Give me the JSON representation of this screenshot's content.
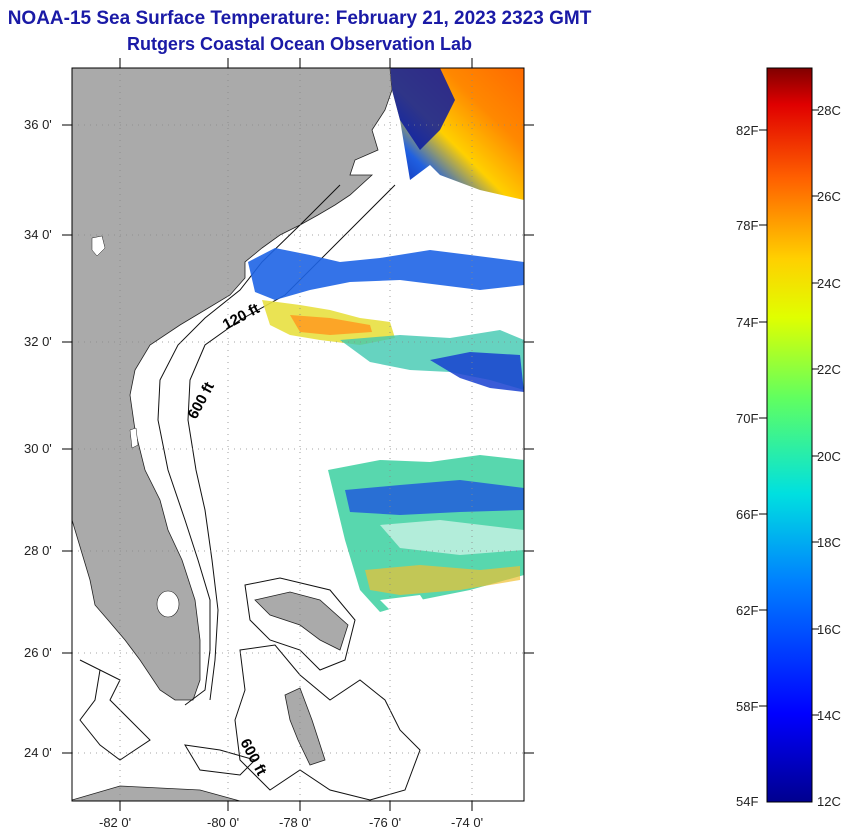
{
  "header": {
    "title": "NOAA-15 Sea Surface Temperature:  February 21, 2023 2323 GMT",
    "subtitle": "Rutgers Coastal Ocean Observation Lab"
  },
  "map": {
    "lat_labels": [
      "36 0'",
      "34 0'",
      "32 0'",
      "30 0'",
      "28 0'",
      "26 0'",
      "24 0'"
    ],
    "lon_labels": [
      "-82 0'",
      "-80 0'",
      "-78 0'",
      "-76 0'",
      "-74 0'"
    ],
    "contour_labels": [
      "120 ft",
      "600 ft",
      "600 ft"
    ],
    "colors": {
      "land": "#aaaaaa",
      "ocean": "#ffffff",
      "title": "#1a1aa6"
    }
  },
  "colorbar": {
    "fahrenheit_labels": [
      "82F",
      "78F",
      "74F",
      "70F",
      "66F",
      "62F",
      "58F",
      "54F"
    ],
    "celsius_labels": [
      "28C",
      "26C",
      "24C",
      "22C",
      "20C",
      "18C",
      "16C",
      "14C",
      "12C"
    ]
  }
}
